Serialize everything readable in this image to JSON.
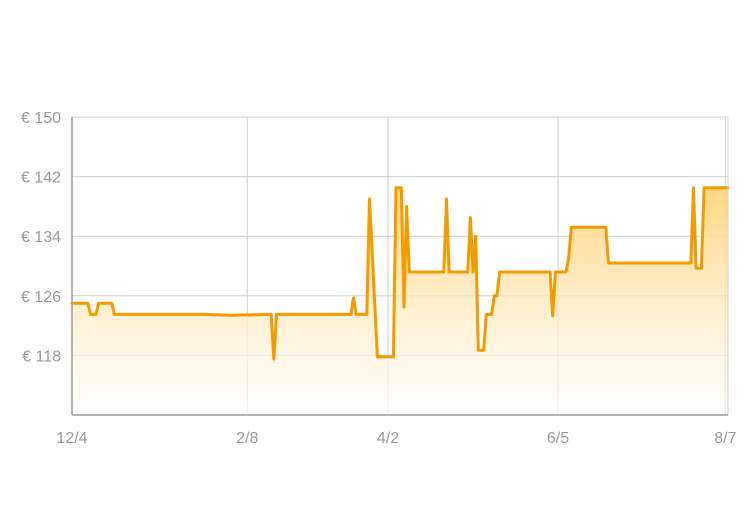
{
  "chart_data": {
    "type": "area",
    "title": "",
    "xlabel": "",
    "ylabel": "",
    "x_axis": {
      "ticks": [
        {
          "label": "12/4",
          "day": 0
        },
        {
          "label": "2/8",
          "day": 66
        },
        {
          "label": "4/2",
          "day": 119
        },
        {
          "label": "6/5",
          "day": 183
        },
        {
          "label": "8/7",
          "day": 246
        }
      ],
      "range_days": [
        0,
        247
      ]
    },
    "y_axis": {
      "ticks": [
        {
          "label": "€ 150",
          "value": 150
        },
        {
          "label": "€ 142",
          "value": 142
        },
        {
          "label": "€ 134",
          "value": 134
        },
        {
          "label": "€ 126",
          "value": 126
        },
        {
          "label": "€ 118",
          "value": 118
        }
      ],
      "ylim": [
        110,
        150
      ]
    },
    "grid": true,
    "legend": "none",
    "colors": {
      "line": "#f59b00",
      "fill_top": "#ffd37a",
      "fill_bottom": "#ffffff",
      "grid": "#d0d0d0",
      "axis": "#9a9a9a",
      "tick_text": "#9a9a9a"
    },
    "series": [
      {
        "points": [
          [
            0,
            125
          ],
          [
            6,
            125
          ],
          [
            7,
            123.5
          ],
          [
            9,
            123.5
          ],
          [
            10,
            125
          ],
          [
            15,
            125
          ],
          [
            16,
            123.5
          ],
          [
            50,
            123.5
          ],
          [
            60,
            123.4
          ],
          [
            75,
            123.5
          ],
          [
            76,
            117.5
          ],
          [
            77,
            123.5
          ],
          [
            105,
            123.5
          ],
          [
            106,
            125.7
          ],
          [
            107,
            123.5
          ],
          [
            111,
            123.5
          ],
          [
            112,
            139
          ],
          [
            115,
            117.8
          ],
          [
            121,
            117.8
          ],
          [
            122,
            140.5
          ],
          [
            124,
            140.5
          ],
          [
            125,
            124.5
          ],
          [
            126,
            138
          ],
          [
            127,
            129.2
          ],
          [
            140,
            129.2
          ],
          [
            141,
            139
          ],
          [
            142,
            129.2
          ],
          [
            149,
            129.2
          ],
          [
            150,
            136.5
          ],
          [
            151,
            129.2
          ],
          [
            152,
            134
          ],
          [
            153,
            118.7
          ],
          [
            155,
            118.7
          ],
          [
            156,
            123.5
          ],
          [
            158,
            123.5
          ],
          [
            159,
            126
          ],
          [
            160,
            126
          ],
          [
            161,
            129.2
          ],
          [
            180,
            129.2
          ],
          [
            181,
            123.3
          ],
          [
            182,
            129.2
          ],
          [
            186,
            129.2
          ],
          [
            187,
            131
          ],
          [
            188,
            135.2
          ],
          [
            201,
            135.2
          ],
          [
            202,
            130.4
          ],
          [
            233,
            130.4
          ],
          [
            234,
            140.5
          ],
          [
            235,
            129.7
          ],
          [
            237,
            129.7
          ],
          [
            238,
            140.5
          ],
          [
            247,
            140.5
          ]
        ]
      }
    ]
  }
}
